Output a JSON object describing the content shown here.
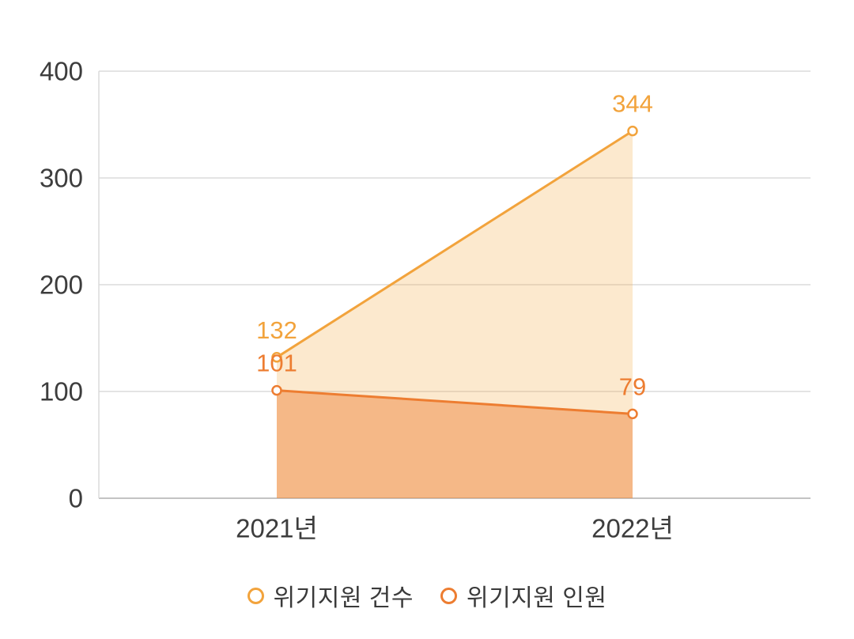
{
  "chart_data": {
    "type": "area",
    "categories": [
      "2021년",
      "2022년"
    ],
    "series": [
      {
        "name": "위기지원 건수",
        "values": [
          132,
          344
        ],
        "color": "#F2A33C",
        "fill": "rgba(245,166,59,0.25)"
      },
      {
        "name": "위기지원 인원",
        "values": [
          101,
          79
        ],
        "color": "#ED7D31",
        "fill": "rgba(237,125,49,0.45)"
      }
    ],
    "title": "",
    "xlabel": "",
    "ylabel": "",
    "ylim": [
      0,
      400
    ],
    "yticks": [
      0,
      100,
      200,
      300,
      400
    ],
    "grid": true,
    "legend_position": "bottom",
    "colors": {
      "grid": "#DBDBDB",
      "axis": "#C3C3C3",
      "tick_text": "#3D3D3D",
      "background": "#FFFFFF"
    }
  }
}
